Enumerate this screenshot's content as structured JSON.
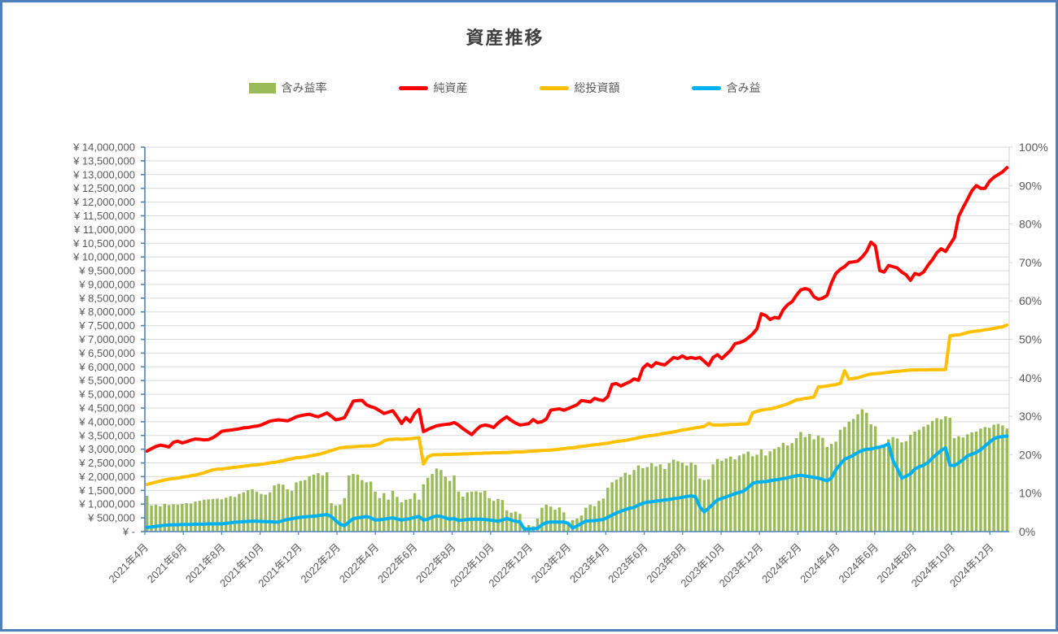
{
  "title": "資産推移",
  "colors": {
    "frame_border": "#4E80BC",
    "axis_line": "#4F81BD",
    "gridline": "#D9D9D9",
    "axis_text": "#595959",
    "title_text": "#404040"
  },
  "chart_data": {
    "type": "combo",
    "title": "資産推移",
    "x_points": 197,
    "x_span_note": "weekly points from 2021年4月 to 2025年1月",
    "x_tick_labels": [
      "2021年4月",
      "2021年6月",
      "2021年8月",
      "2021年10月",
      "2021年12月",
      "2022年2月",
      "2022年4月",
      "2022年6月",
      "2022年8月",
      "2022年10月",
      "2022年12月",
      "2023年2月",
      "2023年4月",
      "2023年6月",
      "2023年8月",
      "2023年10月",
      "2023年12月",
      "2024年2月",
      "2024年4月",
      "2024年6月",
      "2024年8月",
      "2024年10月",
      "2024年12月"
    ],
    "left_axis": {
      "min": 0,
      "max": 14000000,
      "step": 500000,
      "tick_labels": [
        "¥ 14,000,000",
        "¥ 13,500,000",
        "¥ 13,000,000",
        "¥ 12,500,000",
        "¥ 12,000,000",
        "¥ 11,500,000",
        "¥ 11,000,000",
        "¥ 10,500,000",
        "¥ 10,000,000",
        "¥ 9,500,000",
        "¥ 9,000,000",
        "¥ 8,500,000",
        "¥ 8,000,000",
        "¥ 7,500,000",
        "¥ 7,000,000",
        "¥ 6,500,000",
        "¥ 6,000,000",
        "¥ 5,500,000",
        "¥ 5,000,000",
        "¥ 4,500,000",
        "¥ 4,000,000",
        "¥ 3,500,000",
        "¥ 3,000,000",
        "¥ 2,500,000",
        "¥ 2,000,000",
        "¥ 1,500,000",
        "¥ 1,000,000",
        "¥ 500,000",
        "¥ -"
      ]
    },
    "right_axis": {
      "min_pct": 0,
      "max_pct": 100,
      "step_pct": 10,
      "tick_labels": [
        "100%",
        "90%",
        "80%",
        "70%",
        "60%",
        "50%",
        "40%",
        "30%",
        "20%",
        "10%",
        "0%"
      ]
    },
    "series": [
      {
        "name": "含み益率",
        "type": "bar",
        "axis": "right",
        "unit": "%",
        "color": "#9BBB59",
        "values": [
          9.3,
          6.8,
          7.0,
          6.6,
          7.2,
          6.9,
          7.1,
          7.0,
          7.2,
          7.4,
          7.3,
          7.8,
          8.0,
          8.3,
          8.4,
          8.5,
          8.6,
          8.4,
          8.8,
          9.2,
          9.0,
          9.8,
          10.2,
          10.8,
          11.0,
          10.4,
          9.8,
          9.6,
          10.2,
          12.0,
          12.4,
          12.2,
          11.0,
          10.6,
          12.8,
          13.2,
          13.4,
          14.4,
          14.8,
          15.2,
          14.6,
          15.4,
          7.4,
          6.8,
          7.0,
          8.7,
          14.6,
          15.0,
          14.8,
          13.4,
          12.8,
          13.0,
          10.4,
          8.7,
          10.0,
          8.3,
          10.6,
          9.0,
          7.6,
          8.3,
          8.5,
          10.0,
          8.3,
          12.3,
          14.0,
          15.0,
          16.4,
          16.0,
          14.3,
          13.2,
          14.6,
          10.4,
          9.1,
          10.2,
          10.4,
          10.5,
          10.2,
          10.6,
          8.7,
          8.0,
          8.5,
          8.2,
          5.5,
          4.9,
          5.2,
          4.6,
          1.3,
          1.7,
          1.4,
          3.4,
          6.2,
          7.0,
          6.5,
          5.7,
          6.3,
          5.0,
          2.4,
          3.0,
          3.4,
          4.2,
          6.2,
          7.0,
          6.6,
          8.0,
          8.6,
          11.4,
          12.8,
          13.5,
          14.2,
          15.3,
          14.8,
          16.0,
          17.2,
          16.5,
          16.8,
          17.8,
          17.0,
          17.5,
          16.3,
          17.8,
          18.7,
          18.3,
          17.9,
          17.2,
          18.0,
          17.4,
          13.8,
          13.4,
          13.6,
          17.5,
          18.9,
          18.4,
          19.0,
          19.5,
          18.8,
          19.8,
          20.2,
          20.8,
          19.6,
          20.0,
          21.4,
          19.8,
          20.9,
          21.5,
          22.0,
          23.1,
          22.4,
          23.0,
          24.3,
          25.9,
          24.6,
          25.4,
          24.0,
          25.0,
          24.4,
          22.0,
          22.8,
          23.4,
          26.5,
          27.2,
          28.6,
          29.3,
          30.5,
          31.8,
          30.9,
          27.9,
          27.4,
          21.7,
          22.5,
          24.0,
          24.6,
          24.2,
          23.2,
          23.5,
          25.2,
          26.0,
          26.5,
          27.3,
          27.8,
          28.8,
          29.5,
          29.2,
          30.0,
          29.6,
          24.3,
          24.8,
          24.5,
          25.3,
          25.8,
          26.0,
          26.8,
          27.2,
          27.0,
          27.8,
          28.0,
          27.6,
          26.8
        ]
      },
      {
        "name": "純資産",
        "type": "line",
        "axis": "left",
        "unit": "million JPY",
        "color": "#FF0000",
        "values": [
          2.93,
          3.02,
          3.1,
          3.15,
          3.12,
          3.08,
          3.25,
          3.29,
          3.23,
          3.27,
          3.33,
          3.37,
          3.36,
          3.34,
          3.35,
          3.42,
          3.52,
          3.65,
          3.68,
          3.69,
          3.72,
          3.74,
          3.78,
          3.79,
          3.82,
          3.84,
          3.88,
          3.95,
          4.02,
          4.05,
          4.07,
          4.05,
          4.03,
          4.1,
          4.18,
          4.22,
          4.25,
          4.27,
          4.22,
          4.18,
          4.25,
          4.32,
          4.2,
          4.07,
          4.1,
          4.15,
          4.45,
          4.75,
          4.77,
          4.78,
          4.62,
          4.55,
          4.5,
          4.4,
          4.3,
          4.35,
          4.4,
          4.18,
          3.94,
          4.15,
          4.0,
          4.3,
          4.45,
          3.64,
          3.72,
          3.79,
          3.85,
          3.88,
          3.9,
          3.92,
          3.97,
          3.88,
          3.75,
          3.64,
          3.53,
          3.7,
          3.84,
          3.88,
          3.85,
          3.79,
          3.95,
          4.08,
          4.18,
          4.05,
          3.95,
          3.88,
          3.9,
          3.93,
          4.08,
          3.97,
          4.0,
          4.1,
          4.42,
          4.45,
          4.47,
          4.42,
          4.48,
          4.55,
          4.62,
          4.77,
          4.75,
          4.72,
          4.85,
          4.8,
          4.77,
          4.91,
          5.36,
          5.39,
          5.3,
          5.38,
          5.45,
          5.56,
          5.51,
          5.95,
          6.1,
          6.0,
          6.15,
          6.1,
          6.07,
          6.2,
          6.34,
          6.3,
          6.4,
          6.3,
          6.34,
          6.3,
          6.34,
          6.2,
          6.05,
          6.34,
          6.44,
          6.3,
          6.45,
          6.6,
          6.84,
          6.88,
          6.94,
          7.05,
          7.19,
          7.38,
          7.93,
          7.87,
          7.72,
          7.8,
          7.77,
          8.08,
          8.26,
          8.37,
          8.6,
          8.8,
          8.85,
          8.8,
          8.55,
          8.46,
          8.5,
          8.6,
          9.06,
          9.4,
          9.55,
          9.65,
          9.8,
          9.82,
          9.85,
          10.0,
          10.2,
          10.54,
          10.4,
          9.5,
          9.45,
          9.69,
          9.65,
          9.6,
          9.45,
          9.35,
          9.15,
          9.4,
          9.35,
          9.45,
          9.7,
          9.9,
          10.15,
          10.3,
          10.2,
          10.45,
          10.7,
          11.48,
          11.8,
          12.1,
          12.41,
          12.6,
          12.5,
          12.5,
          12.75,
          12.9,
          13.0,
          13.1,
          13.25
        ]
      },
      {
        "name": "総投資額",
        "type": "line",
        "axis": "left",
        "unit": "million JPY",
        "color": "#FFC000",
        "values": [
          1.72,
          1.76,
          1.8,
          1.84,
          1.88,
          1.91,
          1.93,
          1.95,
          1.98,
          2.0,
          2.03,
          2.06,
          2.1,
          2.14,
          2.2,
          2.25,
          2.27,
          2.28,
          2.3,
          2.32,
          2.34,
          2.36,
          2.38,
          2.4,
          2.42,
          2.43,
          2.45,
          2.47,
          2.5,
          2.52,
          2.55,
          2.58,
          2.62,
          2.65,
          2.69,
          2.7,
          2.72,
          2.75,
          2.78,
          2.81,
          2.85,
          2.9,
          2.95,
          3.0,
          3.05,
          3.07,
          3.08,
          3.09,
          3.1,
          3.11,
          3.12,
          3.12,
          3.15,
          3.2,
          3.3,
          3.35,
          3.36,
          3.37,
          3.36,
          3.37,
          3.38,
          3.4,
          3.42,
          2.46,
          2.72,
          2.79,
          2.8,
          2.8,
          2.81,
          2.81,
          2.82,
          2.82,
          2.83,
          2.83,
          2.84,
          2.85,
          2.85,
          2.86,
          2.86,
          2.87,
          2.87,
          2.88,
          2.88,
          2.89,
          2.9,
          2.9,
          2.91,
          2.92,
          2.93,
          2.94,
          2.95,
          2.96,
          2.97,
          2.98,
          3.0,
          3.02,
          3.04,
          3.05,
          3.08,
          3.1,
          3.12,
          3.14,
          3.16,
          3.18,
          3.2,
          3.22,
          3.25,
          3.28,
          3.3,
          3.32,
          3.35,
          3.38,
          3.42,
          3.45,
          3.48,
          3.5,
          3.52,
          3.55,
          3.58,
          3.6,
          3.63,
          3.66,
          3.7,
          3.72,
          3.75,
          3.78,
          3.8,
          3.83,
          3.94,
          3.88,
          3.88,
          3.88,
          3.89,
          3.9,
          3.9,
          3.91,
          3.92,
          3.93,
          4.32,
          4.38,
          4.42,
          4.45,
          4.47,
          4.5,
          4.55,
          4.6,
          4.65,
          4.72,
          4.8,
          4.82,
          4.85,
          4.87,
          4.9,
          5.27,
          5.28,
          5.3,
          5.33,
          5.35,
          5.4,
          5.86,
          5.55,
          5.58,
          5.6,
          5.65,
          5.7,
          5.74,
          5.75,
          5.76,
          5.78,
          5.8,
          5.82,
          5.84,
          5.85,
          5.87,
          5.88,
          5.88,
          5.89,
          5.89,
          5.89,
          5.9,
          5.9,
          5.9,
          5.9,
          7.13,
          7.15,
          7.16,
          7.2,
          7.25,
          7.28,
          7.3,
          7.32,
          7.35,
          7.37,
          7.4,
          7.43,
          7.46,
          7.52
        ]
      },
      {
        "name": "含み益",
        "type": "line",
        "axis": "left",
        "unit": "million JPY",
        "color": "#00B0F0",
        "values": [
          0.15,
          0.17,
          0.19,
          0.21,
          0.23,
          0.24,
          0.25,
          0.25,
          0.26,
          0.26,
          0.26,
          0.27,
          0.27,
          0.27,
          0.28,
          0.28,
          0.28,
          0.28,
          0.3,
          0.32,
          0.34,
          0.35,
          0.36,
          0.37,
          0.38,
          0.38,
          0.37,
          0.36,
          0.36,
          0.35,
          0.35,
          0.4,
          0.44,
          0.47,
          0.5,
          0.52,
          0.54,
          0.55,
          0.56,
          0.58,
          0.6,
          0.62,
          0.55,
          0.4,
          0.27,
          0.21,
          0.35,
          0.47,
          0.5,
          0.52,
          0.55,
          0.5,
          0.42,
          0.43,
          0.45,
          0.48,
          0.5,
          0.46,
          0.42,
          0.45,
          0.47,
          0.52,
          0.55,
          0.42,
          0.45,
          0.52,
          0.57,
          0.55,
          0.5,
          0.45,
          0.48,
          0.4,
          0.42,
          0.44,
          0.45,
          0.45,
          0.45,
          0.44,
          0.42,
          0.4,
          0.38,
          0.42,
          0.48,
          0.42,
          0.38,
          0.35,
          0.09,
          0.1,
          0.1,
          0.12,
          0.25,
          0.33,
          0.35,
          0.35,
          0.35,
          0.35,
          0.3,
          0.13,
          0.2,
          0.3,
          0.38,
          0.39,
          0.4,
          0.42,
          0.44,
          0.52,
          0.6,
          0.68,
          0.74,
          0.8,
          0.85,
          0.88,
          0.97,
          1.03,
          1.07,
          1.09,
          1.11,
          1.13,
          1.15,
          1.17,
          1.2,
          1.22,
          1.25,
          1.28,
          1.3,
          1.27,
          0.9,
          0.72,
          0.85,
          1.0,
          1.15,
          1.21,
          1.26,
          1.32,
          1.38,
          1.43,
          1.48,
          1.6,
          1.75,
          1.8,
          1.81,
          1.82,
          1.85,
          1.88,
          1.9,
          1.93,
          1.96,
          2.0,
          2.03,
          2.05,
          2.02,
          2.0,
          1.97,
          1.95,
          1.9,
          1.85,
          1.95,
          2.25,
          2.45,
          2.64,
          2.7,
          2.78,
          2.88,
          2.95,
          3.0,
          3.0,
          3.05,
          3.08,
          3.12,
          3.2,
          2.6,
          2.3,
          1.95,
          2.02,
          2.1,
          2.28,
          2.36,
          2.42,
          2.52,
          2.68,
          2.82,
          2.95,
          3.05,
          2.42,
          2.4,
          2.5,
          2.62,
          2.76,
          2.82,
          2.88,
          2.98,
          3.12,
          3.25,
          3.38,
          3.44,
          3.46,
          3.48
        ]
      }
    ]
  }
}
